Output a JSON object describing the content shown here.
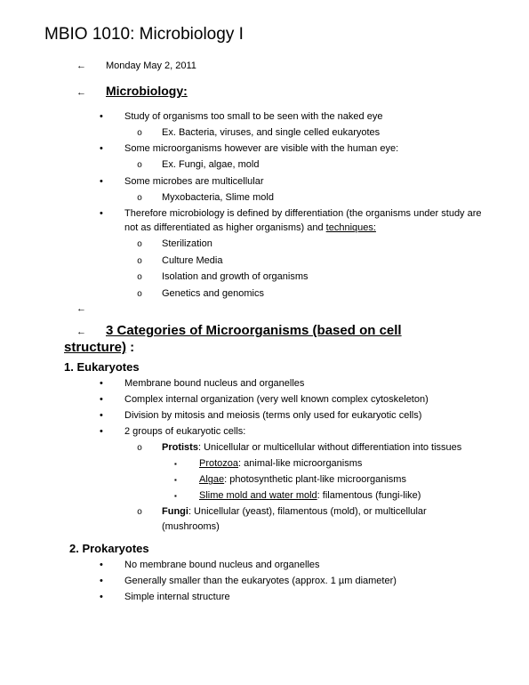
{
  "title": "MBIO 1010: Microbiology I",
  "date": "Monday May 2, 2011",
  "section1": {
    "heading": "Microbiology:",
    "items": {
      "i0": "Study of organisms too small to be seen with the naked eye",
      "i0a": "Ex. Bacteria, viruses, and single celled eukaryotes",
      "i1": "Some microorganisms however are visible with the human eye:",
      "i1a": "Ex. Fungi, algae, mold",
      "i2": "Some microbes are multicellular",
      "i2a": "Myxobacteria, Slime mold",
      "i3a": "Therefore microbiology is defined by differentiation (the organisms under study are not as differentiated as higher organisms) and ",
      "i3b": "techniques:",
      "i3s0": "Sterilization",
      "i3s1": "Culture Media",
      "i3s2": "Isolation and growth of organisms",
      "i3s3": "Genetics and genomics"
    }
  },
  "section2": {
    "heading_line1": "3 Categories of Microorganisms (based on cell",
    "heading_line2_ul": "structure)",
    "heading_line2_tail": " :",
    "cat1": {
      "title": "1. Eukaryotes",
      "b0": "Membrane bound nucleus and organelles",
      "b1": "Complex internal organization (very well known complex cytoskeleton)",
      "b2": "Division by mitosis and meiosis (terms only used for eukaryotic cells)",
      "b3": "2 groups of eukaryotic cells:",
      "b3s0_label": "Protists",
      "b3s0_rest": ": Unicellular or multicellular without differentiation into tissues",
      "b3s0a_label": "Protozoa",
      "b3s0a_rest": ": animal-like microorganisms",
      "b3s0b_label": "Algae",
      "b3s0b_rest": ": photosynthetic plant-like microorganisms",
      "b3s0c_label": "Slime mold and water mold",
      "b3s0c_rest": ": filamentous (fungi-like)",
      "b3s1_label": "Fungi",
      "b3s1_rest": ": Unicellular (yeast), filamentous (mold), or multicellular (mushrooms)"
    },
    "cat2": {
      "title": "2.  Prokaryotes",
      "b0": "No membrane bound nucleus and organelles",
      "b1": "Generally smaller than the eukaryotes (approx. 1 µm diameter)",
      "b2": "Simple internal structure"
    }
  }
}
